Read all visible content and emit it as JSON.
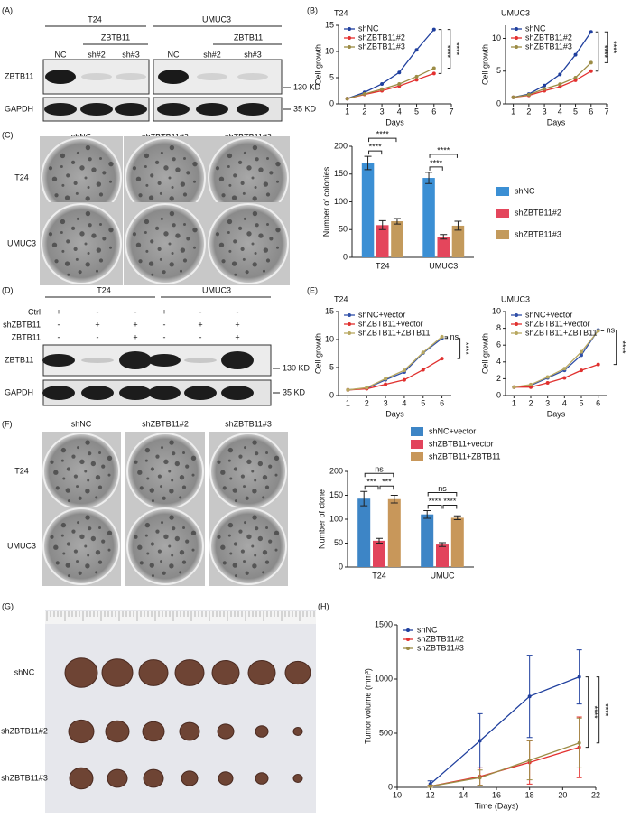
{
  "panel_labels": [
    "(A)",
    "(B)",
    "(C)",
    "(D)",
    "(E)",
    "(F)",
    "(G)",
    "(H)"
  ],
  "blot_a": {
    "cell_lines": [
      "T24",
      "UMUC3"
    ],
    "knockdown": [
      "ZBTB11",
      "ZBTB11"
    ],
    "lanes": [
      "NC",
      "sh#2",
      "sh#3",
      "NC",
      "sh#2",
      "sh#3"
    ],
    "rows": [
      "ZBTB11",
      "GAPDH"
    ],
    "markers": [
      "130 KD",
      "35 KD"
    ]
  },
  "plates_c": {
    "columns": [
      "shNC",
      "shZBTB11#2",
      "shZBTB11#3"
    ],
    "rows": [
      "T24",
      "UMUC3"
    ]
  },
  "blot_d": {
    "cell_lines": [
      "T24",
      "UMUC3"
    ],
    "conditions": [
      {
        "name": "Ctrl",
        "signs": [
          "+",
          "-",
          "-",
          "+",
          "-",
          "-"
        ]
      },
      {
        "name": "shZBTB11",
        "signs": [
          "-",
          "+",
          "+",
          "-",
          "+",
          "+"
        ]
      },
      {
        "name": "ZBTB11",
        "signs": [
          "-",
          "-",
          "+",
          "-",
          "-",
          "+"
        ]
      }
    ],
    "rows": [
      "ZBTB11",
      "GAPDH"
    ],
    "markers": [
      "130 KD",
      "35 KD"
    ]
  },
  "plates_f": {
    "columns": [
      "shNC",
      "shZBTB11#2",
      "shZBTB11#3"
    ],
    "rows": [
      "T24",
      "UMUC3"
    ]
  },
  "photo_g": {
    "rows": [
      "shNC",
      "shZBTB11#2",
      "shZBTB11#3"
    ]
  },
  "chart_data": [
    {
      "type": "line",
      "title": "T24",
      "xlabel": "Days",
      "ylabel": "Cell growth",
      "x": [
        1,
        2,
        3,
        4,
        5,
        6
      ],
      "series": [
        {
          "name": "shNC",
          "color": "#1f3f9e",
          "values": [
            1,
            2.2,
            3.8,
            6,
            10.3,
            14.2
          ]
        },
        {
          "name": "shZBTB11#2",
          "color": "#e3302f",
          "values": [
            1,
            1.8,
            2.5,
            3.4,
            4.6,
            5.8
          ]
        },
        {
          "name": "shZBTB11#3",
          "color": "#9c8c45",
          "values": [
            1,
            1.9,
            2.8,
            3.8,
            5.2,
            6.8
          ]
        }
      ],
      "xlim": [
        0.5,
        7
      ],
      "xticks": [
        1,
        2,
        3,
        4,
        5,
        6,
        7
      ],
      "ylim": [
        0,
        15
      ],
      "yticks": [
        0,
        5,
        10,
        15
      ],
      "annotations": [
        "****",
        "****"
      ]
    },
    {
      "type": "line",
      "title": "UMUC3",
      "xlabel": "Days",
      "ylabel": "Cell growth",
      "x": [
        1,
        2,
        3,
        4,
        5,
        6
      ],
      "series": [
        {
          "name": "shNC",
          "color": "#1f3f9e",
          "values": [
            1,
            1.5,
            2.8,
            4.5,
            7.5,
            11
          ]
        },
        {
          "name": "shZBTB11#2",
          "color": "#e3302f",
          "values": [
            1,
            1.3,
            2,
            2.6,
            3.6,
            5
          ]
        },
        {
          "name": "shZBTB11#3",
          "color": "#9c8c45",
          "values": [
            1,
            1.4,
            2.3,
            3,
            4,
            6.3
          ]
        }
      ],
      "xlim": [
        0.5,
        7
      ],
      "xticks": [
        1,
        2,
        3,
        4,
        5,
        6,
        7
      ],
      "ylim": [
        0,
        12
      ],
      "yticks": [
        0,
        5,
        10
      ],
      "annotations": [
        "****",
        "****"
      ]
    },
    {
      "type": "bar",
      "ylabel": "Number of colonies",
      "categories": [
        "T24",
        "UMUC3"
      ],
      "series": [
        {
          "name": "shNC",
          "color": "#3b8fd4",
          "values": [
            170,
            143
          ],
          "errors": [
            12,
            10
          ]
        },
        {
          "name": "shZBTB11#2",
          "color": "#e4465c",
          "values": [
            58,
            37
          ],
          "errors": [
            8,
            4
          ]
        },
        {
          "name": "shZBTB11#3",
          "color": "#c39a5c",
          "values": [
            65,
            57
          ],
          "errors": [
            5,
            8
          ]
        }
      ],
      "ylim": [
        0,
        200
      ],
      "yticks": [
        0,
        50,
        100,
        150,
        200
      ],
      "annotations": [
        "****",
        "****",
        "****",
        "****"
      ]
    },
    {
      "type": "line",
      "title": "T24",
      "xlabel": "Days",
      "ylabel": "Cell growth",
      "x": [
        1,
        2,
        3,
        4,
        5,
        6
      ],
      "series": [
        {
          "name": "shNC+vector",
          "color": "#2f4fa8",
          "values": [
            1,
            1.3,
            2.8,
            4.2,
            7.6,
            10.2
          ]
        },
        {
          "name": "shZBTB11+vector",
          "color": "#e0302e",
          "values": [
            1,
            1.2,
            2,
            2.8,
            4.6,
            6.6
          ]
        },
        {
          "name": "shZBTB11+ZBTB11",
          "color": "#b8a860",
          "values": [
            1,
            1.4,
            3,
            4.5,
            7.7,
            10.5
          ]
        }
      ],
      "xlim": [
        0.5,
        6.5
      ],
      "xticks": [
        1,
        2,
        3,
        4,
        5,
        6
      ],
      "ylim": [
        0,
        15
      ],
      "yticks": [
        0,
        5,
        10,
        15
      ],
      "annotations": [
        "ns",
        "****"
      ]
    },
    {
      "type": "line",
      "title": "UMUC3",
      "xlabel": "Days",
      "ylabel": "Cell growth",
      "x": [
        1,
        2,
        3,
        4,
        5,
        6
      ],
      "series": [
        {
          "name": "shNC+vector",
          "color": "#2f4fa8",
          "values": [
            1,
            1.2,
            2.1,
            3,
            4.8,
            7.8
          ]
        },
        {
          "name": "shZBTB11+vector",
          "color": "#e0302e",
          "values": [
            1,
            1,
            1.5,
            2.1,
            3,
            3.7
          ]
        },
        {
          "name": "shZBTB11+ZBTB11",
          "color": "#b8a860",
          "values": [
            1,
            1.3,
            2.2,
            3.2,
            5.2,
            7.7
          ]
        }
      ],
      "xlim": [
        0.5,
        6.5
      ],
      "xticks": [
        1,
        2,
        3,
        4,
        5,
        6
      ],
      "ylim": [
        0,
        10
      ],
      "yticks": [
        0,
        2,
        4,
        6,
        8,
        10
      ],
      "annotations": [
        "ns",
        "****"
      ]
    },
    {
      "type": "bar",
      "ylabel": "Number of clone",
      "categories": [
        "T24",
        "UMUC"
      ],
      "series": [
        {
          "name": "shNC+vector",
          "color": "#3d85c6",
          "values": [
            143,
            110
          ],
          "errors": [
            15,
            8
          ]
        },
        {
          "name": "shZBTB11+vector",
          "color": "#e2445c",
          "values": [
            55,
            47
          ],
          "errors": [
            5,
            4
          ]
        },
        {
          "name": "shZBTB11+ZBTB11",
          "color": "#c8975a",
          "values": [
            142,
            103
          ],
          "errors": [
            8,
            4
          ]
        }
      ],
      "ylim": [
        0,
        200
      ],
      "yticks": [
        0,
        50,
        100,
        150,
        200
      ],
      "annotations": [
        "ns",
        "***",
        "***",
        "ns",
        "****",
        "****"
      ]
    },
    {
      "type": "line",
      "xlabel": "Time (Days)",
      "ylabel": "Tumor volume (mm³)",
      "x": [
        12,
        15,
        18,
        21
      ],
      "series": [
        {
          "name": "shNC",
          "color": "#1f3f9e",
          "values": [
            30,
            430,
            840,
            1020
          ],
          "errors": [
            30,
            250,
            380,
            250
          ]
        },
        {
          "name": "shZBTB11#2",
          "color": "#e3302f",
          "values": [
            10,
            100,
            230,
            370
          ],
          "errors": [
            10,
            80,
            200,
            280
          ]
        },
        {
          "name": "shZBTB11#3",
          "color": "#9c8c45",
          "values": [
            10,
            90,
            250,
            410
          ],
          "errors": [
            10,
            70,
            180,
            230
          ]
        }
      ],
      "xlim": [
        10,
        22
      ],
      "xticks": [
        10,
        12,
        14,
        16,
        18,
        20,
        22
      ],
      "ylim": [
        0,
        1500
      ],
      "yticks": [
        0,
        500,
        1000,
        1500
      ],
      "annotations": [
        "****",
        "****"
      ]
    }
  ]
}
